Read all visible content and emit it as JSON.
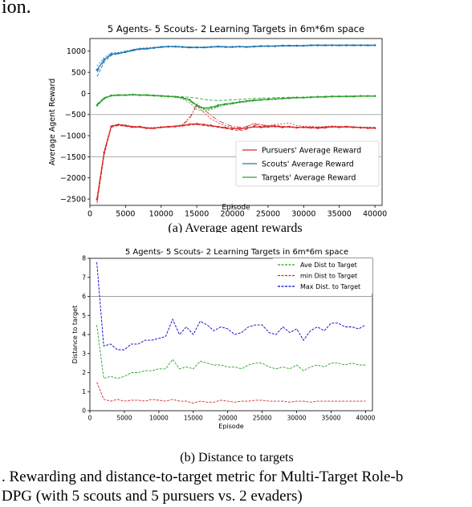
{
  "page": {
    "header_fragment": "ion.",
    "subcaption_a": "(a) Average agent rewards",
    "subcaption_b": "(b) Distance to targets",
    "caption_line1": ". Rewarding and distance-to-target metric for Multi-Target Role-b",
    "caption_line2": "DPG (with 5 scouts and 5 pursuers vs. 2 evaders)"
  },
  "chart_data": [
    {
      "type": "line",
      "title": "5 Agents- 5 Scouts- 2 Learning Targets in 6m*6m space",
      "xlabel": "Episode",
      "ylabel": "Average Agent Reward",
      "xlim": [
        0,
        41000
      ],
      "ylim": [
        -2650,
        1300
      ],
      "xticks": [
        0,
        5000,
        10000,
        15000,
        20000,
        25000,
        30000,
        35000,
        40000
      ],
      "yticks": [
        -2500,
        -2000,
        -1500,
        -1000,
        -500,
        0,
        500,
        1000
      ],
      "grid": false,
      "hlines": [
        -500,
        -1500
      ],
      "legend": "lower-right",
      "x": [
        1000,
        2000,
        3000,
        4000,
        5000,
        6000,
        7000,
        8000,
        9000,
        10000,
        11000,
        12000,
        13000,
        14000,
        15000,
        16000,
        17000,
        18000,
        19000,
        20000,
        21000,
        22000,
        23000,
        24000,
        25000,
        26000,
        27000,
        28000,
        29000,
        30000,
        31000,
        32000,
        33000,
        34000,
        35000,
        36000,
        37000,
        38000,
        39000,
        40000
      ],
      "series": [
        {
          "name": "Pursuers' Average Reward",
          "color": "#d62728",
          "values": [
            -2500,
            -1400,
            -780,
            -740,
            -760,
            -790,
            -790,
            -820,
            -820,
            -800,
            -790,
            -780,
            -760,
            -730,
            -720,
            -740,
            -760,
            -790,
            -810,
            -830,
            -840,
            -820,
            -790,
            -800,
            -790,
            -780,
            -800,
            -790,
            -810,
            -800,
            -810,
            -820,
            -810,
            -790,
            -800,
            -790,
            -800,
            -810,
            -820,
            -820
          ],
          "variants": [
            [
              -2600,
              -1450,
              -800,
              -760,
              -780,
              -810,
              -800,
              -830,
              -830,
              -810,
              -800,
              -790,
              -770,
              -750,
              -740,
              -760,
              -780,
              -800,
              -830,
              -860,
              -880,
              -850,
              -760,
              -780,
              -770,
              -760,
              -780,
              -780,
              -800,
              -790,
              -800,
              -800,
              -790,
              -780,
              -790,
              -780,
              -790,
              -800,
              -810,
              -810
            ],
            [
              -2450,
              -1350,
              -760,
              -730,
              -750,
              -780,
              -780,
              -810,
              -810,
              -790,
              -780,
              -770,
              -740,
              -560,
              -300,
              -450,
              -600,
              -700,
              -760,
              -800,
              -820,
              -800,
              -700,
              -740,
              -760,
              -740,
              -720,
              -700,
              -760,
              -780,
              -780,
              -790,
              -780,
              -770,
              -780,
              -780,
              -790,
              -800,
              -800,
              -800
            ],
            [
              -2550,
              -1420,
              -770,
              -750,
              -770,
              -800,
              -800,
              -830,
              -830,
              -800,
              -790,
              -780,
              -750,
              -600,
              -250,
              -380,
              -520,
              -640,
              -720,
              -780,
              -800,
              -780,
              -730,
              -750,
              -770,
              -770,
              -790,
              -800,
              -810,
              -810,
              -820,
              -810,
              -800,
              -790,
              -800,
              -800,
              -810,
              -810,
              -820,
              -830
            ]
          ]
        },
        {
          "name": "Scouts' Average Reward",
          "color": "#1f77b4",
          "values": [
            560,
            800,
            930,
            950,
            980,
            1020,
            1050,
            1060,
            1080,
            1100,
            1110,
            1110,
            1100,
            1090,
            1090,
            1090,
            1100,
            1110,
            1100,
            1100,
            1110,
            1100,
            1110,
            1120,
            1120,
            1120,
            1130,
            1130,
            1130,
            1130,
            1140,
            1140,
            1140,
            1140,
            1140,
            1140,
            1140,
            1140,
            1140,
            1140
          ],
          "variants": [
            [
              400,
              740,
              900,
              940,
              970,
              1010,
              1040,
              1050,
              1070,
              1090,
              1100,
              1100,
              1090,
              1080,
              1080,
              1080,
              1090,
              1100,
              1090,
              1090,
              1100,
              1090,
              1100,
              1110,
              1110,
              1110,
              1120,
              1120,
              1120,
              1120,
              1130,
              1130,
              1130,
              1130,
              1130,
              1130,
              1130,
              1130,
              1130,
              1130
            ],
            [
              650,
              850,
              960,
              970,
              1000,
              1040,
              1070,
              1080,
              1090,
              1110,
              1120,
              1120,
              1110,
              1100,
              1100,
              1100,
              1110,
              1120,
              1110,
              1110,
              1120,
              1110,
              1120,
              1130,
              1130,
              1130,
              1140,
              1140,
              1140,
              1140,
              1150,
              1150,
              1150,
              1150,
              1150,
              1150,
              1150,
              1150,
              1150,
              1150
            ],
            [
              500,
              780,
              920,
              950,
              990,
              1030,
              1060,
              1070,
              1080,
              1100,
              1110,
              1110,
              1100,
              1090,
              1090,
              1090,
              1100,
              1110,
              1100,
              1100,
              1110,
              1100,
              1110,
              1120,
              1120,
              1120,
              1130,
              1130,
              1130,
              1130,
              1140,
              1140,
              1140,
              1140,
              1140,
              1140,
              1140,
              1140,
              1140,
              1140
            ]
          ]
        },
        {
          "name": "Targets' Average Reward",
          "color": "#2ca02c",
          "values": [
            -280,
            -120,
            -50,
            -40,
            -40,
            -30,
            -40,
            -40,
            -50,
            -60,
            -70,
            -80,
            -100,
            -150,
            -280,
            -350,
            -330,
            -280,
            -250,
            -230,
            -200,
            -180,
            -160,
            -150,
            -140,
            -130,
            -120,
            -110,
            -100,
            -100,
            -90,
            -80,
            -80,
            -70,
            -70,
            -70,
            -70,
            -60,
            -60,
            -60
          ],
          "variants": [
            [
              -250,
              -100,
              -40,
              -30,
              -30,
              -20,
              -30,
              -30,
              -40,
              -50,
              -60,
              -70,
              -80,
              -90,
              -110,
              -140,
              -160,
              -170,
              -160,
              -150,
              -140,
              -130,
              -120,
              -110,
              -110,
              -100,
              -100,
              -90,
              -90,
              -90,
              -80,
              -80,
              -70,
              -70,
              -70,
              -60,
              -60,
              -60,
              -60,
              -60
            ],
            [
              -300,
              -130,
              -60,
              -50,
              -50,
              -40,
              -50,
              -50,
              -60,
              -70,
              -80,
              -90,
              -130,
              -220,
              -380,
              -420,
              -380,
              -320,
              -280,
              -250,
              -220,
              -200,
              -180,
              -160,
              -150,
              -140,
              -130,
              -120,
              -110,
              -110,
              -100,
              -90,
              -90,
              -80,
              -80,
              -80,
              -80,
              -70,
              -70,
              -70
            ],
            [
              -270,
              -110,
              -50,
              -40,
              -40,
              -30,
              -40,
              -40,
              -50,
              -60,
              -70,
              -80,
              -110,
              -180,
              -300,
              -380,
              -360,
              -300,
              -260,
              -240,
              -210,
              -190,
              -170,
              -150,
              -140,
              -130,
              -120,
              -110,
              -100,
              -100,
              -90,
              -90,
              -80,
              -80,
              -80,
              -70,
              -70,
              -70,
              -70,
              -70
            ]
          ]
        }
      ]
    },
    {
      "type": "line",
      "title": "5 Agents- 5 Scouts- 2 Learning Targets in 6m*6m space",
      "xlabel": "Episode",
      "ylabel": "Distance to target",
      "xlim": [
        0,
        41000
      ],
      "ylim": [
        0,
        8
      ],
      "xticks": [
        0,
        5000,
        10000,
        15000,
        20000,
        25000,
        30000,
        35000,
        40000
      ],
      "yticks": [
        0,
        1,
        2,
        3,
        4,
        5,
        6,
        7,
        8
      ],
      "grid": false,
      "hlines": [
        6
      ],
      "legend": "upper-right",
      "x": [
        1000,
        2000,
        3000,
        4000,
        5000,
        6000,
        7000,
        8000,
        9000,
        10000,
        11000,
        12000,
        13000,
        14000,
        15000,
        16000,
        17000,
        18000,
        19000,
        20000,
        21000,
        22000,
        23000,
        24000,
        25000,
        26000,
        27000,
        28000,
        29000,
        30000,
        31000,
        32000,
        33000,
        34000,
        35000,
        36000,
        37000,
        38000,
        39000,
        40000
      ],
      "series": [
        {
          "name": "Ave Dist to Target",
          "color": "#2ca02c",
          "values": [
            4.5,
            1.7,
            1.8,
            1.7,
            1.8,
            2.0,
            2.0,
            2.1,
            2.1,
            2.2,
            2.2,
            2.7,
            2.2,
            2.3,
            2.2,
            2.6,
            2.5,
            2.4,
            2.4,
            2.3,
            2.3,
            2.2,
            2.4,
            2.5,
            2.5,
            2.3,
            2.2,
            2.3,
            2.2,
            2.4,
            2.1,
            2.3,
            2.4,
            2.3,
            2.5,
            2.5,
            2.4,
            2.5,
            2.4,
            2.4
          ]
        },
        {
          "name": "min Dist to Target",
          "color": "#d62728",
          "values": [
            1.5,
            0.6,
            0.5,
            0.6,
            0.5,
            0.55,
            0.55,
            0.5,
            0.6,
            0.55,
            0.5,
            0.6,
            0.5,
            0.5,
            0.4,
            0.5,
            0.45,
            0.45,
            0.55,
            0.5,
            0.45,
            0.5,
            0.5,
            0.55,
            0.55,
            0.5,
            0.5,
            0.5,
            0.45,
            0.5,
            0.5,
            0.45,
            0.5,
            0.5,
            0.5,
            0.5,
            0.5,
            0.5,
            0.5,
            0.5
          ]
        },
        {
          "name": "Max Dist. to Target",
          "color": "#0000cc",
          "values": [
            7.8,
            3.4,
            3.5,
            3.2,
            3.2,
            3.5,
            3.5,
            3.7,
            3.7,
            3.8,
            3.9,
            4.8,
            4.0,
            4.4,
            4.0,
            4.7,
            4.5,
            4.2,
            4.4,
            4.3,
            4.0,
            4.1,
            4.4,
            4.5,
            4.5,
            4.1,
            4.0,
            4.4,
            4.1,
            4.3,
            3.7,
            4.2,
            4.4,
            4.2,
            4.6,
            4.6,
            4.4,
            4.4,
            4.3,
            4.5
          ]
        }
      ]
    }
  ]
}
